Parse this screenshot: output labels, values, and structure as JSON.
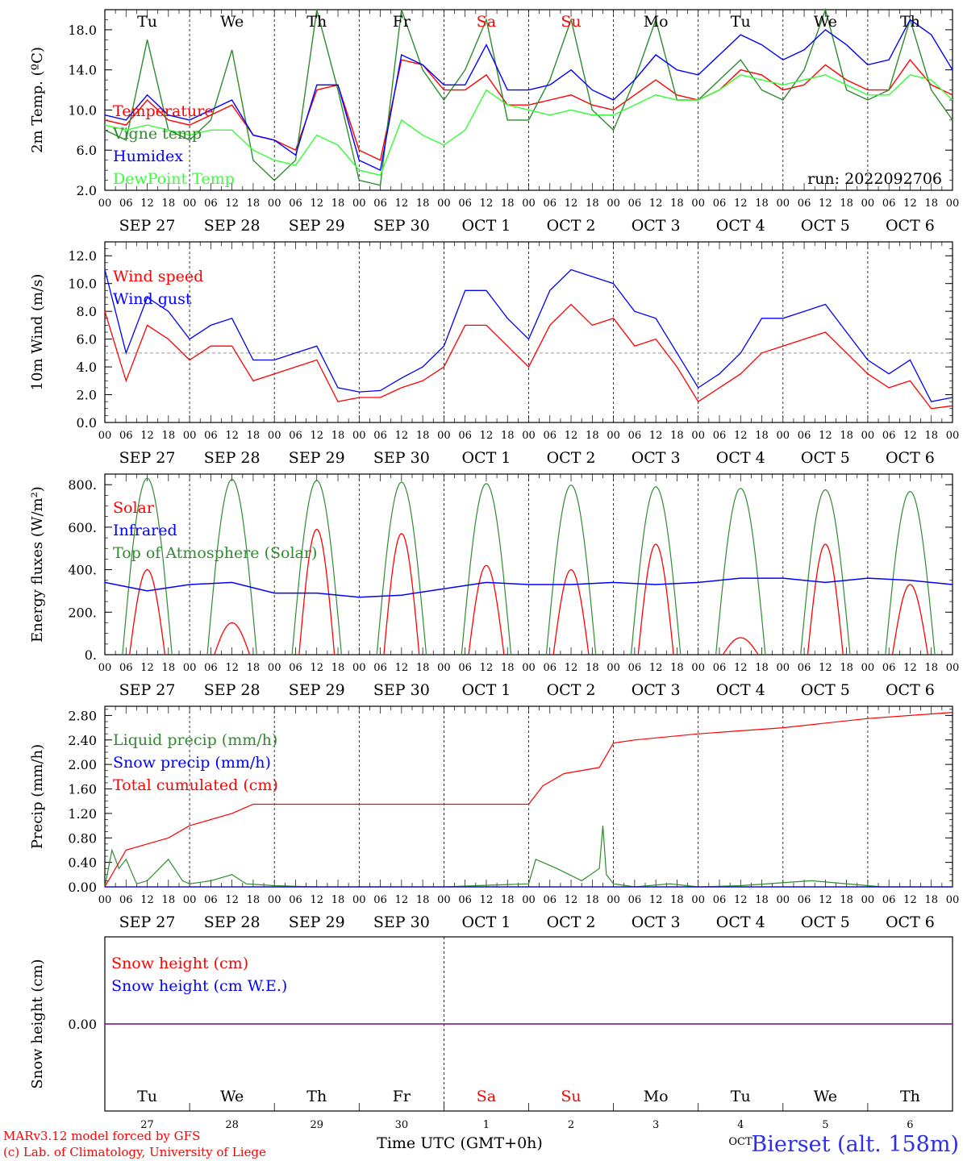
{
  "run_label": "run: 2022092706",
  "footer": {
    "credit_line1": "MARv3.12 model forced by GFS",
    "credit_line2": "(c) Lab. of Climatology, University of Liege",
    "xaxis_title": "Time UTC (GMT+0h)",
    "station": "Bierset (alt. 158m)",
    "month_label": "OCT",
    "colors": {
      "credit": "#ff0000",
      "station": "#2e2ee6",
      "xaxis_title": "#000000"
    }
  },
  "days": [
    {
      "weekday": "Tu",
      "date_label": "SEP 27",
      "day_number": "27",
      "weekend": false
    },
    {
      "weekday": "We",
      "date_label": "SEP 28",
      "day_number": "28",
      "weekend": false
    },
    {
      "weekday": "Th",
      "date_label": "SEP 29",
      "day_number": "29",
      "weekend": false
    },
    {
      "weekday": "Fr",
      "date_label": "SEP 30",
      "day_number": "30",
      "weekend": false
    },
    {
      "weekday": "Sa",
      "date_label": "OCT 1",
      "day_number": "1",
      "weekend": true
    },
    {
      "weekday": "Su",
      "date_label": "OCT 2",
      "day_number": "2",
      "weekend": true
    },
    {
      "weekday": "Mo",
      "date_label": "OCT 3",
      "day_number": "3",
      "weekend": false
    },
    {
      "weekday": "Tu",
      "date_label": "OCT 4",
      "day_number": "4",
      "weekend": false
    },
    {
      "weekday": "We",
      "date_label": "OCT 5",
      "day_number": "5",
      "weekend": false
    },
    {
      "weekday": "Th",
      "date_label": "OCT 6",
      "day_number": "6",
      "weekend": false
    }
  ],
  "hour_ticks": [
    "00",
    "06",
    "12",
    "18"
  ],
  "chart_data": [
    {
      "type": "line",
      "ylabel": "2m Temp. (ºC)",
      "ylim": [
        2,
        20
      ],
      "yticks": [
        "2.0",
        "6.0",
        "10.0",
        "14.0",
        "18.0"
      ],
      "ytick_values": [
        2,
        6,
        10,
        14,
        18
      ],
      "x_unit": "hours since Sep 27 00 UTC",
      "series": [
        {
          "name": "Temperature",
          "color": "#ff0000",
          "x": [
            0,
            6,
            12,
            18,
            24,
            30,
            36,
            42,
            48,
            54,
            60,
            66,
            72,
            78,
            84,
            90,
            96,
            102,
            108,
            114,
            120,
            126,
            132,
            138,
            144,
            150,
            156,
            162,
            168,
            174,
            180,
            186,
            192,
            198,
            204,
            210,
            216,
            222,
            228,
            234,
            240
          ],
          "values": [
            9.0,
            8.5,
            11.0,
            9.0,
            8.5,
            9.5,
            10.5,
            7.5,
            7.0,
            6.0,
            12.0,
            12.5,
            6.0,
            5.0,
            15.0,
            14.5,
            12.0,
            12.0,
            13.5,
            10.5,
            10.5,
            11.0,
            11.5,
            10.5,
            10.0,
            11.5,
            13.0,
            11.5,
            11.0,
            12.0,
            14.0,
            13.5,
            12.0,
            12.5,
            14.5,
            13.0,
            12.0,
            12.0,
            15.0,
            12.5,
            11.5
          ]
        },
        {
          "name": "Vigne temp",
          "color": "#2e8b2e",
          "x": [
            0,
            6,
            12,
            18,
            24,
            30,
            36,
            42,
            48,
            54,
            60,
            66,
            72,
            78,
            84,
            90,
            96,
            102,
            108,
            114,
            120,
            126,
            132,
            138,
            144,
            150,
            156,
            162,
            168,
            174,
            180,
            186,
            192,
            198,
            204,
            210,
            216,
            222,
            228,
            234,
            240
          ],
          "values": [
            8.0,
            7.0,
            17.0,
            8.0,
            7.0,
            9.0,
            16.0,
            5.0,
            3.0,
            5.0,
            20.0,
            12.0,
            3.0,
            2.5,
            20.0,
            14.0,
            11.0,
            14.0,
            19.0,
            9.0,
            9.0,
            13.0,
            19.0,
            10.0,
            8.0,
            13.0,
            19.0,
            11.0,
            11.0,
            13.0,
            15.0,
            12.0,
            11.0,
            14.0,
            20.0,
            12.0,
            11.0,
            12.0,
            19.0,
            12.0,
            9.0
          ]
        },
        {
          "name": "Humidex",
          "color": "#0000ff",
          "x": [
            0,
            6,
            12,
            18,
            24,
            30,
            36,
            42,
            48,
            54,
            60,
            66,
            72,
            78,
            84,
            90,
            96,
            102,
            108,
            114,
            120,
            126,
            132,
            138,
            144,
            150,
            156,
            162,
            168,
            174,
            180,
            186,
            192,
            198,
            204,
            210,
            216,
            222,
            228,
            234,
            240
          ],
          "values": [
            9.5,
            9.0,
            11.5,
            9.5,
            9.0,
            10.0,
            11.0,
            7.5,
            7.0,
            5.5,
            12.5,
            12.5,
            5.0,
            4.0,
            15.5,
            14.5,
            12.5,
            12.5,
            16.5,
            12.0,
            12.0,
            12.5,
            14.0,
            12.0,
            11.0,
            13.0,
            15.5,
            14.0,
            13.5,
            15.5,
            17.5,
            16.5,
            15.0,
            16.0,
            18.0,
            16.5,
            14.5,
            15.0,
            19.0,
            17.5,
            14.0
          ]
        },
        {
          "name": "DewPoint Temp",
          "color": "#33ff33",
          "x": [
            0,
            6,
            12,
            18,
            24,
            30,
            36,
            42,
            48,
            54,
            60,
            66,
            72,
            78,
            84,
            90,
            96,
            102,
            108,
            114,
            120,
            126,
            132,
            138,
            144,
            150,
            156,
            162,
            168,
            174,
            180,
            186,
            192,
            198,
            204,
            210,
            216,
            222,
            228,
            234,
            240
          ],
          "values": [
            8.5,
            8.0,
            8.5,
            8.0,
            7.5,
            8.0,
            8.0,
            6.0,
            5.0,
            4.5,
            7.5,
            6.5,
            4.0,
            3.5,
            9.0,
            7.5,
            6.5,
            8.0,
            12.0,
            10.5,
            10.0,
            9.5,
            10.0,
            9.5,
            9.5,
            10.5,
            11.5,
            11.0,
            11.0,
            12.0,
            13.5,
            13.0,
            12.5,
            13.0,
            13.5,
            12.5,
            11.5,
            11.5,
            13.5,
            13.0,
            11.0
          ]
        }
      ]
    },
    {
      "type": "line",
      "ylabel": "10m Wind (m/s)",
      "ylim": [
        0,
        13
      ],
      "yticks": [
        "0.0",
        "2.0",
        "4.0",
        "6.0",
        "8.0",
        "10.0",
        "12.0"
      ],
      "ytick_values": [
        0,
        2,
        4,
        6,
        8,
        10,
        12
      ],
      "reference_line": 5.0,
      "x_unit": "hours since Sep 27 00 UTC",
      "series": [
        {
          "name": "Wind speed",
          "color": "#ff0000",
          "x": [
            0,
            6,
            12,
            18,
            24,
            30,
            36,
            42,
            48,
            54,
            60,
            66,
            72,
            78,
            84,
            90,
            96,
            102,
            108,
            114,
            120,
            126,
            132,
            138,
            144,
            150,
            156,
            162,
            168,
            174,
            180,
            186,
            192,
            198,
            204,
            210,
            216,
            222,
            228,
            234,
            240
          ],
          "values": [
            8.0,
            3.0,
            7.0,
            6.0,
            4.5,
            5.5,
            5.5,
            3.0,
            3.5,
            4.0,
            4.5,
            1.5,
            1.8,
            1.8,
            2.5,
            3.0,
            4.0,
            7.0,
            7.0,
            5.5,
            4.0,
            7.0,
            8.5,
            7.0,
            7.5,
            5.5,
            6.0,
            4.0,
            1.5,
            2.5,
            3.5,
            5.0,
            5.5,
            6.0,
            6.5,
            5.0,
            3.5,
            2.5,
            3.0,
            1.0,
            1.2
          ]
        },
        {
          "name": "Wind gust",
          "color": "#0000ff",
          "x": [
            0,
            6,
            12,
            18,
            24,
            30,
            36,
            42,
            48,
            54,
            60,
            66,
            72,
            78,
            84,
            90,
            96,
            102,
            108,
            114,
            120,
            126,
            132,
            138,
            144,
            150,
            156,
            162,
            168,
            174,
            180,
            186,
            192,
            198,
            204,
            210,
            216,
            222,
            228,
            234,
            240
          ],
          "values": [
            11.0,
            5.0,
            9.0,
            8.0,
            6.0,
            7.0,
            7.5,
            4.5,
            4.5,
            5.0,
            5.5,
            2.5,
            2.2,
            2.3,
            3.2,
            4.0,
            5.5,
            9.5,
            9.5,
            7.5,
            6.0,
            9.5,
            11.0,
            10.5,
            10.0,
            8.0,
            7.5,
            5.0,
            2.5,
            3.5,
            5.0,
            7.5,
            7.5,
            8.0,
            8.5,
            6.5,
            4.5,
            3.5,
            4.5,
            1.5,
            1.8
          ]
        }
      ]
    },
    {
      "type": "line",
      "ylabel": "Energy fluxes (W/m²)",
      "ylim": [
        0,
        850
      ],
      "yticks": [
        "0.",
        "200.",
        "400.",
        "600.",
        "800."
      ],
      "ytick_values": [
        0,
        200,
        400,
        600,
        800
      ],
      "x_unit": "hours since Sep 27 00 UTC",
      "series": [
        {
          "name": "Solar",
          "color": "#ff0000",
          "daily_peak": [
            400,
            150,
            590,
            570,
            420,
            400,
            520,
            80,
            520,
            330
          ]
        },
        {
          "name": "Infrared",
          "color": "#0000ff",
          "x": [
            0,
            12,
            24,
            36,
            48,
            60,
            72,
            84,
            96,
            108,
            120,
            132,
            144,
            156,
            168,
            180,
            192,
            204,
            216,
            228,
            240
          ],
          "values": [
            340,
            300,
            330,
            340,
            290,
            290,
            270,
            280,
            310,
            340,
            330,
            330,
            340,
            330,
            340,
            360,
            360,
            340,
            360,
            350,
            330
          ]
        },
        {
          "name": "Top of Atmosphere (Solar)",
          "color": "#2e8b2e",
          "daily_peak": [
            830,
            825,
            820,
            812,
            805,
            798,
            790,
            783,
            776,
            768
          ]
        }
      ]
    },
    {
      "type": "line",
      "ylabel": "Precip (mm/h)",
      "ylim": [
        0,
        2.95
      ],
      "yticks": [
        "0.00",
        "0.40",
        "0.80",
        "1.20",
        "1.60",
        "2.00",
        "2.40",
        "2.80"
      ],
      "ytick_values": [
        0,
        0.4,
        0.8,
        1.2,
        1.6,
        2.0,
        2.4,
        2.8
      ],
      "x_unit": "hours since Sep 27 00 UTC",
      "series": [
        {
          "name": "Liquid precip (mm/h)",
          "color": "#2e8b2e",
          "x": [
            0,
            2,
            4,
            6,
            9,
            12,
            18,
            22,
            24,
            30,
            36,
            40,
            48,
            60,
            72,
            96,
            120,
            122,
            128,
            135,
            140,
            141,
            142,
            144,
            150,
            160,
            168,
            180,
            200,
            220,
            240
          ],
          "values": [
            0,
            0.6,
            0.3,
            0.45,
            0.05,
            0.1,
            0.45,
            0.1,
            0.05,
            0.1,
            0.2,
            0.05,
            0.02,
            0,
            0,
            0,
            0.05,
            0.45,
            0.3,
            0.1,
            0.3,
            1.0,
            0.2,
            0.05,
            0,
            0.05,
            0,
            0.02,
            0.1,
            0,
            0
          ]
        },
        {
          "name": "Snow precip (mm/h)",
          "color": "#0000ff",
          "x": [
            0,
            240
          ],
          "values": [
            0,
            0
          ]
        },
        {
          "name": "Total cumulated (cm)",
          "color": "#ff0000",
          "x": [
            0,
            6,
            12,
            18,
            24,
            30,
            36,
            42,
            48,
            72,
            96,
            120,
            124,
            130,
            140,
            144,
            150,
            168,
            192,
            216,
            240
          ],
          "values": [
            0,
            0.6,
            0.7,
            0.8,
            1.0,
            1.1,
            1.2,
            1.35,
            1.35,
            1.35,
            1.35,
            1.35,
            1.65,
            1.85,
            1.95,
            2.35,
            2.4,
            2.5,
            2.6,
            2.75,
            2.85
          ]
        }
      ]
    },
    {
      "type": "line",
      "ylabel": "Snow height (cm)",
      "ylim": [
        -1,
        1
      ],
      "yticks": [
        "0.00"
      ],
      "ytick_values": [
        0
      ],
      "x_unit": "hours since Sep 27 00 UTC",
      "series": [
        {
          "name": "Snow height (cm)",
          "color": "#ff0000",
          "x": [
            0,
            240
          ],
          "values": [
            0,
            0
          ]
        },
        {
          "name": "Snow height (cm W.E.)",
          "color": "#0000ff",
          "x": [
            0,
            240
          ],
          "values": [
            0,
            0
          ]
        }
      ],
      "zero_line_color": "#800080"
    }
  ]
}
